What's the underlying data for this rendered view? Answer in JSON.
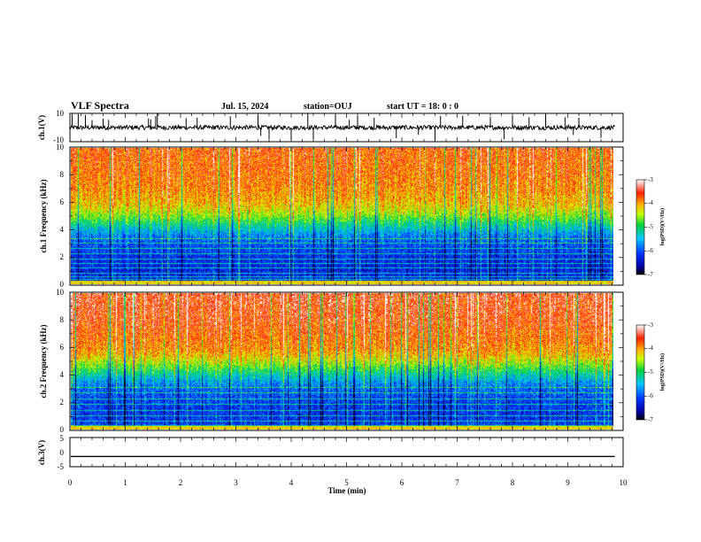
{
  "header": {
    "title": "VLF Spectra",
    "date": "Jul. 15, 2024",
    "station": "station=OUJ",
    "start": "start UT =  18: 0  : 0"
  },
  "chart_data": [
    {
      "type": "line",
      "id": "ch1-waveform",
      "ylabel": "ch.1(V)",
      "ylim": [
        -10,
        10
      ],
      "yticks": [
        "10",
        "-10"
      ],
      "xlim": [
        0,
        10
      ],
      "baseline": 0,
      "spikes_min": [
        0.04,
        0.15,
        0.28,
        0.4,
        0.6,
        0.7,
        1.42,
        1.46,
        1.55,
        1.58,
        2.1,
        2.3,
        2.9,
        3.4,
        3.45,
        3.6,
        4.0,
        4.3,
        4.4,
        4.8,
        5.05,
        5.2,
        5.5,
        5.9,
        6.3,
        6.6,
        6.7,
        7.1,
        7.6,
        7.85,
        8.0,
        8.3,
        8.6,
        8.95,
        9.1,
        9.2,
        9.6
      ]
    },
    {
      "type": "heatmap",
      "id": "ch1-spectrogram",
      "ylabel": "ch.1 Frequency (kHz)",
      "ylim": [
        0,
        10
      ],
      "yticks": [
        "0",
        "2",
        "4",
        "6",
        "8",
        "10"
      ],
      "xlim": [
        0,
        9.85
      ],
      "colorbar": {
        "label": "log(PSD)(V²/Hz)",
        "range": [
          -7,
          -3
        ],
        "ticks": [
          "-3",
          "-4",
          "-5",
          "-6",
          "-7"
        ]
      },
      "profile": [
        {
          "f": 0,
          "v": -6.2
        },
        {
          "f": 1,
          "v": -6.3
        },
        {
          "f": 2,
          "v": -6.2
        },
        {
          "f": 3,
          "v": -6.0
        },
        {
          "f": 3.5,
          "v": -5.8
        },
        {
          "f": 4,
          "v": -5.4
        },
        {
          "f": 4.5,
          "v": -5.0
        },
        {
          "f": 5,
          "v": -4.6
        },
        {
          "f": 5.5,
          "v": -4.3
        },
        {
          "f": 6,
          "v": -4.1
        },
        {
          "f": 7,
          "v": -3.9
        },
        {
          "f": 8,
          "v": -3.8
        },
        {
          "f": 9,
          "v": -3.75
        },
        {
          "f": 10,
          "v": -3.7
        }
      ],
      "tones_khz": [
        0.3,
        0.55,
        0.8,
        1.15,
        1.5,
        1.85,
        2.25,
        2.6,
        3.0,
        3.35
      ]
    },
    {
      "type": "heatmap",
      "id": "ch2-spectrogram",
      "ylabel": "ch.2 Frequency (kHz)",
      "ylim": [
        0,
        10
      ],
      "yticks": [
        "0",
        "2",
        "4",
        "6",
        "8",
        "10"
      ],
      "xlim": [
        0,
        9.85
      ],
      "colorbar": {
        "label": "log(PSD)(V²/Hz)",
        "range": [
          -7,
          -3
        ],
        "ticks": [
          "-3",
          "-4",
          "-5",
          "-6",
          "-7"
        ]
      },
      "profile": [
        {
          "f": 0,
          "v": -6.1
        },
        {
          "f": 1,
          "v": -6.2
        },
        {
          "f": 2,
          "v": -6.1
        },
        {
          "f": 3,
          "v": -5.9
        },
        {
          "f": 3.5,
          "v": -5.6
        },
        {
          "f": 4,
          "v": -5.2
        },
        {
          "f": 4.5,
          "v": -4.8
        },
        {
          "f": 5,
          "v": -4.4
        },
        {
          "f": 5.5,
          "v": -4.1
        },
        {
          "f": 6,
          "v": -3.9
        },
        {
          "f": 7,
          "v": -3.75
        },
        {
          "f": 8,
          "v": -3.6
        },
        {
          "f": 9,
          "v": -3.55
        },
        {
          "f": 10,
          "v": -3.5
        }
      ],
      "tones_khz": [
        0.25,
        0.6,
        1.0,
        1.4,
        1.8,
        2.2,
        2.7,
        3.1
      ]
    },
    {
      "type": "line",
      "id": "ch3-waveform",
      "ylabel": "ch.3(V)",
      "ylim": [
        -5,
        5
      ],
      "yticks": [
        "5",
        "0",
        "-5"
      ],
      "xlim": [
        0,
        10
      ],
      "xlabel": "Time (min)",
      "xticks": [
        "0",
        "1",
        "2",
        "3",
        "4",
        "5",
        "6",
        "7",
        "8",
        "9",
        "10"
      ],
      "value": -1.5,
      "line_end_min": 9.85
    }
  ]
}
